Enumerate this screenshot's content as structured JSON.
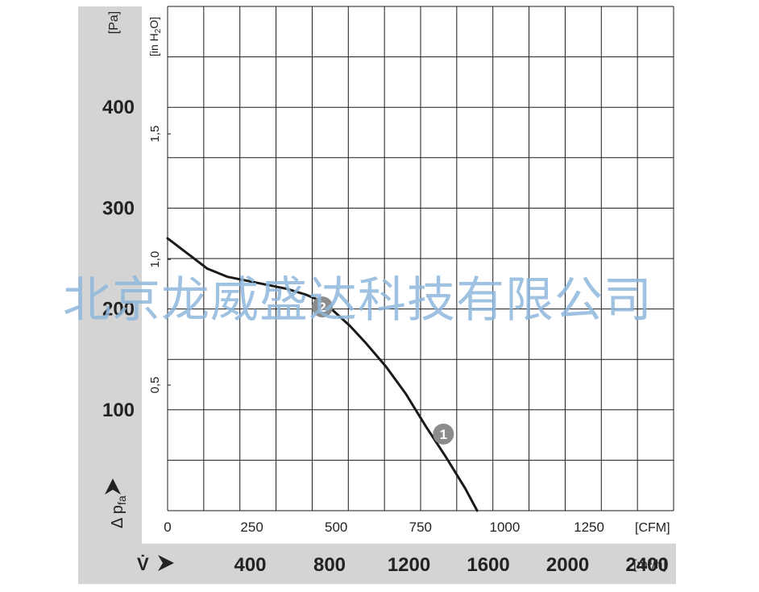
{
  "chart_data": {
    "type": "line",
    "title": "",
    "x_axis_top": {
      "unit": "[CFM]",
      "ticks": [
        "0",
        "250",
        "500",
        "750",
        "1000",
        "1250"
      ]
    },
    "x_axis_bottom": {
      "symbol": "V̇",
      "unit": "[m³/h]",
      "ticks": [
        "400",
        "800",
        "1200",
        "1600",
        "2000",
        "2400"
      ]
    },
    "y_axis_left": {
      "unit": "[Pa]",
      "ticks": [
        "100",
        "200",
        "300",
        "400"
      ],
      "label": "Δ p",
      "label_sub": "fa"
    },
    "y_axis_inner": {
      "unit_main": "[in H",
      "unit_sub": "2",
      "unit_end": "O]",
      "ticks": [
        "0,5",
        "1,0",
        "1,5"
      ]
    },
    "xlim_m3h": [
      0,
      2550
    ],
    "ylim_pa": [
      0,
      500
    ],
    "grid": true,
    "series": [
      {
        "color": "#1a1a1a",
        "points": [
          {
            "x": 0,
            "y": 270
          },
          {
            "x": 100,
            "y": 255
          },
          {
            "x": 200,
            "y": 240
          },
          {
            "x": 300,
            "y": 232
          },
          {
            "x": 400,
            "y": 228
          },
          {
            "x": 500,
            "y": 224
          },
          {
            "x": 600,
            "y": 220
          },
          {
            "x": 700,
            "y": 214
          },
          {
            "x": 760,
            "y": 209
          },
          {
            "x": 820,
            "y": 201
          },
          {
            "x": 920,
            "y": 183
          },
          {
            "x": 1000,
            "y": 166
          },
          {
            "x": 1100,
            "y": 143
          },
          {
            "x": 1200,
            "y": 116
          },
          {
            "x": 1300,
            "y": 84
          },
          {
            "x": 1400,
            "y": 54
          },
          {
            "x": 1500,
            "y": 22
          },
          {
            "x": 1560,
            "y": 0
          }
        ]
      }
    ],
    "markers": [
      {
        "label": "2",
        "x": 780,
        "y": 202
      },
      {
        "label": "1",
        "x": 1390,
        "y": 76
      }
    ]
  },
  "watermark": "北京龙威盛达科技有限公司"
}
